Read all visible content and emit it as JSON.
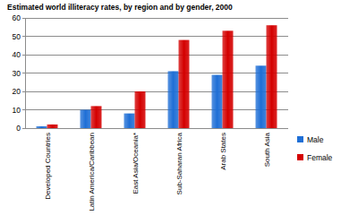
{
  "chart_data": {
    "type": "bar",
    "title": "Estimated world illiteracy rates, by region and by gender, 2000",
    "categories": [
      "Developed Countries",
      "Latin America/Caribbean",
      "East Asia/Oceania*",
      "Sub-Saharan Africa",
      "Arab States",
      "South Asia"
    ],
    "series": [
      {
        "name": "Male",
        "color": "#1f6fd6",
        "values": [
          1,
          10,
          8,
          31,
          29,
          34
        ]
      },
      {
        "name": "Female",
        "color": "#d40000",
        "values": [
          2,
          12,
          20,
          48,
          53,
          56
        ]
      }
    ],
    "ylim": [
      0,
      60
    ],
    "yticks": [
      0,
      10,
      20,
      30,
      40,
      50,
      60
    ],
    "grid": true,
    "legend": "right"
  }
}
